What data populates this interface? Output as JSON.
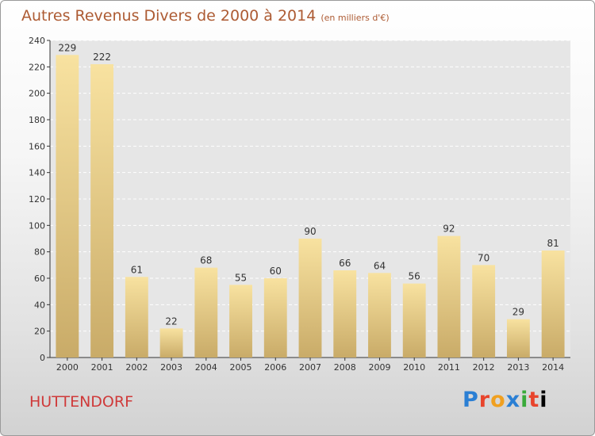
{
  "title": "Autres Revenus Divers de 2000 à 2014",
  "unit": "(en milliers d'€)",
  "commune": "HUTTENDORF",
  "logo": "Proxiti",
  "chart_data": {
    "type": "bar",
    "title": "Autres Revenus Divers de 2000 à 2014",
    "subtitle": "(en milliers d'€)",
    "categories": [
      "2000",
      "2001",
      "2002",
      "2003",
      "2004",
      "2005",
      "2006",
      "2007",
      "2008",
      "2009",
      "2010",
      "2011",
      "2012",
      "2013",
      "2014"
    ],
    "values": [
      229,
      222,
      61,
      22,
      68,
      55,
      60,
      90,
      66,
      64,
      56,
      92,
      70,
      29,
      81
    ],
    "ylim": [
      0,
      240
    ],
    "yticks": [
      0,
      20,
      40,
      60,
      80,
      100,
      120,
      140,
      160,
      180,
      200,
      220,
      240
    ],
    "grid": true,
    "colors": {
      "bar_top": "#f8e2a0",
      "bar_bottom": "#c9ab68",
      "grid": "#ffffff",
      "plot_bg": "#e6e6e6"
    }
  }
}
